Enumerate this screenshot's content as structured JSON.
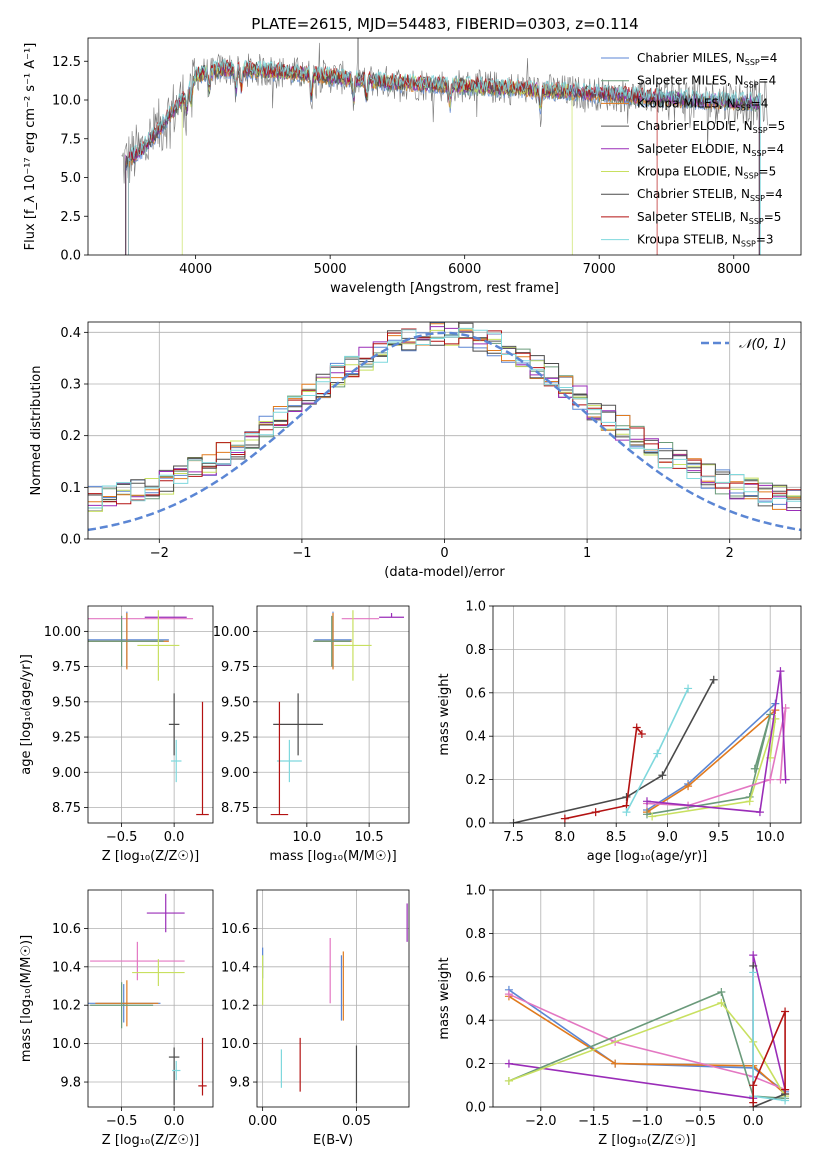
{
  "figure": {
    "title": "PLATE=2615, MJD=54483, FIBERID=0303, z=0.114"
  },
  "colors": {
    "Chabrier MILES": "#5b86d4",
    "Salpeter MILES": "#6a9a7a",
    "Kroupa MILES": "#e07a1e",
    "Chabrier ELODIE": "#555555",
    "Salpeter ELODIE": "#9a2db8",
    "Kroupa ELODIE": "#c8e060",
    "Chabrier STELIB": "#4a4a4a",
    "Salpeter STELIB": "#b31212",
    "Kroupa STELIB": "#7fd8dd",
    "pink": "#e377c2",
    "gauss": "#5b86d4"
  },
  "chart_data": [
    {
      "id": "spectrum",
      "type": "line",
      "xlabel": "wavelength [Angstrom, rest frame]",
      "ylabel": "Flux [f_λ 10⁻¹⁷ erg cm⁻² s⁻¹ A⁻¹]",
      "xlim": [
        3200,
        8500
      ],
      "ylim": [
        0,
        14
      ],
      "xticks": [
        "4000",
        "5000",
        "6000",
        "7000",
        "8000"
      ],
      "yticks": [
        "0.0",
        "2.5",
        "5.0",
        "7.5",
        "10.0",
        "12.5"
      ],
      "legend_position": "top-right",
      "x_range": [
        3450,
        8250
      ],
      "continuum": [
        [
          3450,
          5.8
        ],
        [
          3600,
          6.8
        ],
        [
          3700,
          7.8
        ],
        [
          3800,
          9.0
        ],
        [
          3900,
          10.0
        ],
        [
          4000,
          11.6
        ],
        [
          4200,
          12.0
        ],
        [
          4500,
          11.9
        ],
        [
          5000,
          11.5
        ],
        [
          5500,
          11.1
        ],
        [
          6000,
          10.9
        ],
        [
          6500,
          10.7
        ],
        [
          7000,
          10.4
        ],
        [
          7500,
          10.1
        ],
        [
          8000,
          9.9
        ],
        [
          8250,
          9.8
        ]
      ],
      "series": [
        {
          "name": "Chabrier MILES, N_SSP=4",
          "color_key": "Chabrier MILES"
        },
        {
          "name": "Salpeter MILES, N_SSP=4",
          "color_key": "Salpeter MILES"
        },
        {
          "name": "Kroupa MILES, N_SSP=4",
          "color_key": "Kroupa MILES"
        },
        {
          "name": "Chabrier ELODIE, N_SSP=5",
          "color_key": "Chabrier ELODIE"
        },
        {
          "name": "Salpeter ELODIE, N_SSP=4",
          "color_key": "Salpeter ELODIE"
        },
        {
          "name": "Kroupa ELODIE, N_SSP=5",
          "color_key": "Kroupa ELODIE"
        },
        {
          "name": "Chabrier STELIB, N_SSP=4",
          "color_key": "Chabrier STELIB"
        },
        {
          "name": "Salpeter STELIB, N_SSP=5",
          "color_key": "Salpeter STELIB"
        },
        {
          "name": "Kroupa STELIB, N_SSP=3",
          "color_key": "Kroupa STELIB"
        }
      ],
      "model_ranges": {
        "Salpeter STELIB": [
          3500,
          7430
        ],
        "Kroupa ELODIE": [
          3900,
          6800
        ],
        "Kroupa STELIB": [
          3500,
          8200
        ]
      }
    },
    {
      "id": "residuals",
      "type": "line",
      "xlabel": "(data-model)/error",
      "ylabel": "Normed distribution",
      "xlim": [
        -2.5,
        2.5
      ],
      "ylim": [
        0,
        0.42
      ],
      "xticks": [
        "−2",
        "−1",
        "0",
        "1",
        "2"
      ],
      "yticks": [
        "0.0",
        "0.1",
        "0.2",
        "0.3",
        "0.4"
      ],
      "legend": "𝒩(0, 1)",
      "legend_position": "top-right",
      "gaussian": {
        "mu": 0,
        "sigma": 1
      },
      "histogram": {
        "bin_width": 0.1,
        "series_count": 9
      }
    },
    {
      "id": "age-vs-Z",
      "type": "scatter",
      "xlabel": "Z [log₁₀(Z/Z☉)]",
      "ylabel": "age  [log₁₀(age/yr)]",
      "xlim": [
        -0.82,
        0.37
      ],
      "ylim": [
        8.64,
        10.18
      ],
      "xticks": [
        "−0.5",
        "0.0"
      ],
      "yticks": [
        "8.75",
        "9.00",
        "9.25",
        "9.50",
        "9.75",
        "10.00"
      ],
      "points": [
        {
          "x": -0.32,
          "y": 10.09,
          "xerr": [
            0.5,
            0.5
          ],
          "yerr": [
            0.0,
            0.0
          ],
          "color": "pink"
        },
        {
          "x": -0.08,
          "y": 10.1,
          "xerr": [
            0.2,
            0.2
          ],
          "yerr": [
            0.0,
            0.0
          ],
          "color": "Salpeter ELODIE"
        },
        {
          "x": -0.45,
          "y": 9.94,
          "xerr": [
            0.4,
            0.4
          ],
          "yerr": [
            0.2,
            0.2
          ],
          "color": "Chabrier MILES"
        },
        {
          "x": -0.45,
          "y": 9.93,
          "xerr": [
            0.4,
            0.4
          ],
          "yerr": [
            0.2,
            0.2
          ],
          "color": "Kroupa MILES"
        },
        {
          "x": -0.5,
          "y": 9.93,
          "xerr": [
            0.4,
            0.4
          ],
          "yerr": [
            0.18,
            0.18
          ],
          "color": "Salpeter MILES"
        },
        {
          "x": -0.15,
          "y": 9.9,
          "xerr": [
            0.2,
            0.2
          ],
          "yerr": [
            0.25,
            0.25
          ],
          "color": "Kroupa ELODIE"
        },
        {
          "x": 0.0,
          "y": 9.34,
          "xerr": [
            0.05,
            0.05
          ],
          "yerr": [
            0.22,
            0.22
          ],
          "color": "Chabrier STELIB"
        },
        {
          "x": 0.02,
          "y": 9.08,
          "xerr": [
            0.05,
            0.05
          ],
          "yerr": [
            0.15,
            0.15
          ],
          "color": "Kroupa STELIB"
        },
        {
          "x": 0.27,
          "y": 8.7,
          "xerr": [
            0.06,
            0.06
          ],
          "yerr": [
            0.0,
            0.8
          ],
          "color": "Salpeter STELIB"
        }
      ]
    },
    {
      "id": "age-vs-mass",
      "type": "scatter",
      "xlabel": "mass [log₁₀(M/M☉)]",
      "ylabel": "",
      "xlim": [
        9.6,
        10.82
      ],
      "ylim": [
        8.64,
        10.18
      ],
      "xticks": [
        "10.0",
        "10.5"
      ],
      "yticks": [
        "8.75",
        "9.00",
        "9.25",
        "9.50",
        "9.75",
        "10.00"
      ],
      "points": [
        {
          "x": 10.43,
          "y": 10.09,
          "xerr": [
            0.15,
            0.15
          ],
          "yerr": [
            0.0,
            0.0
          ],
          "color": "pink"
        },
        {
          "x": 10.68,
          "y": 10.1,
          "xerr": [
            0.1,
            0.1
          ],
          "yerr": [
            0.0,
            0.03
          ],
          "color": "Salpeter ELODIE"
        },
        {
          "x": 10.21,
          "y": 9.94,
          "xerr": [
            0.15,
            0.15
          ],
          "yerr": [
            0.2,
            0.2
          ],
          "color": "Chabrier MILES"
        },
        {
          "x": 10.21,
          "y": 9.93,
          "xerr": [
            0.15,
            0.15
          ],
          "yerr": [
            0.2,
            0.2
          ],
          "color": "Kroupa MILES"
        },
        {
          "x": 10.2,
          "y": 9.93,
          "xerr": [
            0.15,
            0.15
          ],
          "yerr": [
            0.18,
            0.18
          ],
          "color": "Salpeter MILES"
        },
        {
          "x": 10.37,
          "y": 9.9,
          "xerr": [
            0.15,
            0.15
          ],
          "yerr": [
            0.25,
            0.25
          ],
          "color": "Kroupa ELODIE"
        },
        {
          "x": 9.93,
          "y": 9.34,
          "xerr": [
            0.2,
            0.2
          ],
          "yerr": [
            0.22,
            0.22
          ],
          "color": "Chabrier STELIB"
        },
        {
          "x": 9.86,
          "y": 9.08,
          "xerr": [
            0.1,
            0.1
          ],
          "yerr": [
            0.15,
            0.15
          ],
          "color": "Kroupa STELIB"
        },
        {
          "x": 9.78,
          "y": 8.7,
          "xerr": [
            0.07,
            0.07
          ],
          "yerr": [
            0.0,
            0.8
          ],
          "color": "Salpeter STELIB"
        }
      ]
    },
    {
      "id": "weight-vs-age",
      "type": "line",
      "xlabel": "age  [log₁₀(age/yr)]",
      "ylabel": "mass weight",
      "xlim": [
        7.3,
        10.3
      ],
      "ylim": [
        0,
        1
      ],
      "xticks": [
        "7.5",
        "8.0",
        "8.5",
        "9.0",
        "9.5",
        "10.0"
      ],
      "yticks": [
        "0.0",
        "0.2",
        "0.4",
        "0.6",
        "0.8",
        "1.0"
      ],
      "series": [
        {
          "color": "Chabrier STELIB",
          "x": [
            7.5,
            8.6,
            8.95,
            9.45
          ],
          "y": [
            0.0,
            0.12,
            0.22,
            0.66
          ]
        },
        {
          "color": "Salpeter STELIB",
          "x": [
            8.0,
            8.3,
            8.6,
            8.7,
            8.75
          ],
          "y": [
            0.02,
            0.05,
            0.08,
            0.44,
            0.41
          ]
        },
        {
          "color": "Kroupa STELIB",
          "x": [
            8.6,
            8.9,
            9.2
          ],
          "y": [
            0.05,
            0.32,
            0.62
          ]
        },
        {
          "color": "Chabrier MILES",
          "x": [
            8.8,
            9.2,
            10.05
          ],
          "y": [
            0.06,
            0.18,
            0.55
          ]
        },
        {
          "color": "Kroupa MILES",
          "x": [
            8.8,
            9.2,
            10.05
          ],
          "y": [
            0.05,
            0.17,
            0.52
          ]
        },
        {
          "color": "Salpeter MILES",
          "x": [
            8.8,
            9.8,
            10.0,
            9.85
          ],
          "y": [
            0.04,
            0.12,
            0.5,
            0.25
          ]
        },
        {
          "color": "Kroupa ELODIE",
          "x": [
            8.85,
            9.8,
            10.05,
            10.0
          ],
          "y": [
            0.03,
            0.1,
            0.48,
            0.3
          ]
        },
        {
          "color": "pink",
          "x": [
            8.8,
            9.2,
            10.0,
            10.15,
            10.1
          ],
          "y": [
            0.09,
            0.08,
            0.2,
            0.53,
            0.2
          ]
        },
        {
          "color": "Salpeter ELODIE",
          "x": [
            8.8,
            9.9,
            10.1,
            10.15
          ],
          "y": [
            0.1,
            0.05,
            0.7,
            0.2
          ]
        }
      ]
    },
    {
      "id": "mass-vs-Z",
      "type": "scatter",
      "xlabel": "Z [log₁₀(Z/Z☉)]",
      "ylabel": "mass [log₁₀(M/M☉)]",
      "xlim": [
        -0.82,
        0.37
      ],
      "ylim": [
        9.67,
        10.8
      ],
      "xticks": [
        "−0.5",
        "0.0"
      ],
      "yticks": [
        "9.8",
        "10.0",
        "10.2",
        "10.4",
        "10.6"
      ],
      "points": [
        {
          "x": -0.08,
          "y": 10.68,
          "xerr": [
            0.18,
            0.18
          ],
          "yerr": [
            0.1,
            0.1
          ],
          "color": "Salpeter ELODIE"
        },
        {
          "x": -0.35,
          "y": 10.43,
          "xerr": [
            0.45,
            0.45
          ],
          "yerr": [
            0.1,
            0.1
          ],
          "color": "pink"
        },
        {
          "x": -0.15,
          "y": 10.37,
          "xerr": [
            0.25,
            0.25
          ],
          "yerr": [
            0.07,
            0.07
          ],
          "color": "Kroupa ELODIE"
        },
        {
          "x": -0.48,
          "y": 10.21,
          "xerr": [
            0.35,
            0.35
          ],
          "yerr": [
            0.1,
            0.1
          ],
          "color": "Chabrier MILES"
        },
        {
          "x": -0.45,
          "y": 10.21,
          "xerr": [
            0.3,
            0.3
          ],
          "yerr": [
            0.12,
            0.12
          ],
          "color": "Kroupa MILES"
        },
        {
          "x": -0.5,
          "y": 10.2,
          "xerr": [
            0.3,
            0.3
          ],
          "yerr": [
            0.12,
            0.12
          ],
          "color": "Salpeter MILES"
        },
        {
          "x": 0.0,
          "y": 9.93,
          "xerr": [
            0.05,
            0.05
          ],
          "yerr": [
            0.25,
            0.05
          ],
          "color": "Chabrier STELIB"
        },
        {
          "x": 0.02,
          "y": 9.86,
          "xerr": [
            0.04,
            0.04
          ],
          "yerr": [
            0.05,
            0.05
          ],
          "color": "Kroupa STELIB"
        },
        {
          "x": 0.27,
          "y": 9.78,
          "xerr": [
            0.04,
            0.04
          ],
          "yerr": [
            0.05,
            0.25
          ],
          "color": "Salpeter STELIB"
        }
      ]
    },
    {
      "id": "mass-vs-EBV",
      "type": "scatter",
      "xlabel": "E(B-V)",
      "ylabel": "",
      "xlim": [
        -0.003,
        0.078
      ],
      "ylim": [
        9.67,
        10.8
      ],
      "xticks": [
        "0.00",
        "0.05"
      ],
      "yticks": [
        "9.8",
        "10.0",
        "10.2",
        "10.4",
        "10.6"
      ],
      "points": [
        {
          "x": 0.077,
          "y": 10.63,
          "xerr": [
            0,
            0
          ],
          "yerr": [
            0.1,
            0.1
          ],
          "color": "Salpeter ELODIE"
        },
        {
          "x": 0.036,
          "y": 10.38,
          "xerr": [
            0,
            0
          ],
          "yerr": [
            0.17,
            0.17
          ],
          "color": "pink"
        },
        {
          "x": 0.043,
          "y": 10.3,
          "xerr": [
            0,
            0
          ],
          "yerr": [
            0.18,
            0.18
          ],
          "color": "Kroupa MILES"
        },
        {
          "x": 0.042,
          "y": 10.29,
          "xerr": [
            0,
            0
          ],
          "yerr": [
            0.17,
            0.17
          ],
          "color": "Chabrier MILES"
        },
        {
          "x": 0.0,
          "y": 10.42,
          "xerr": [
            0,
            0
          ],
          "yerr": [
            0.08,
            0.08
          ],
          "color": "Chabrier MILES"
        },
        {
          "x": 0.0,
          "y": 10.33,
          "xerr": [
            0,
            0
          ],
          "yerr": [
            0.13,
            0.13
          ],
          "color": "Kroupa ELODIE"
        },
        {
          "x": 0.05,
          "y": 9.84,
          "xerr": [
            0,
            0
          ],
          "yerr": [
            0.15,
            0.15
          ],
          "color": "Chabrier STELIB"
        },
        {
          "x": 0.02,
          "y": 9.89,
          "xerr": [
            0,
            0
          ],
          "yerr": [
            0.14,
            0.14
          ],
          "color": "Salpeter STELIB"
        },
        {
          "x": 0.01,
          "y": 9.87,
          "xerr": [
            0,
            0
          ],
          "yerr": [
            0.1,
            0.1
          ],
          "color": "Kroupa STELIB"
        }
      ]
    },
    {
      "id": "weight-vs-Z",
      "type": "line",
      "xlabel": "Z [log₁₀(Z/Z☉)]",
      "ylabel": "mass weight",
      "xlim": [
        -2.45,
        0.45
      ],
      "ylim": [
        0,
        1
      ],
      "xticks": [
        "−2.0",
        "−1.5",
        "−1.0",
        "−0.5",
        "0.0"
      ],
      "yticks": [
        "0.0",
        "0.2",
        "0.4",
        "0.6",
        "0.8",
        "1.0"
      ],
      "series": [
        {
          "color": "Chabrier MILES",
          "x": [
            -2.3,
            -1.3,
            0.0,
            0.3
          ],
          "y": [
            0.54,
            0.2,
            0.18,
            0.07
          ]
        },
        {
          "color": "Kroupa MILES",
          "x": [
            -2.3,
            -1.3,
            0.0,
            0.3
          ],
          "y": [
            0.51,
            0.2,
            0.19,
            0.06
          ]
        },
        {
          "color": "pink",
          "x": [
            -2.3,
            -1.3,
            0.0,
            0.3
          ],
          "y": [
            0.52,
            0.3,
            0.14,
            0.08
          ]
        },
        {
          "color": "Salpeter ELODIE",
          "x": [
            -2.3,
            0.0,
            0.0,
            0.3
          ],
          "y": [
            0.2,
            0.04,
            0.7,
            0.08
          ]
        },
        {
          "color": "Salpeter MILES",
          "x": [
            -2.3,
            -0.3,
            0.0,
            0.3
          ],
          "y": [
            0.12,
            0.53,
            0.05,
            0.04
          ]
        },
        {
          "color": "Kroupa ELODIE",
          "x": [
            -2.3,
            -0.3,
            0.0,
            0.3
          ],
          "y": [
            0.12,
            0.48,
            0.3,
            0.05
          ]
        },
        {
          "color": "Chabrier STELIB",
          "x": [
            0.0,
            0.0,
            0.3
          ],
          "y": [
            0.65,
            0.0,
            0.06
          ]
        },
        {
          "color": "Kroupa STELIB",
          "x": [
            0.0,
            0.0,
            0.3
          ],
          "y": [
            0.62,
            0.05,
            0.03
          ]
        },
        {
          "color": "Salpeter STELIB",
          "x": [
            0.0,
            0.0,
            0.3,
            0.3
          ],
          "y": [
            0.02,
            0.1,
            0.44,
            0.08
          ]
        }
      ]
    }
  ]
}
